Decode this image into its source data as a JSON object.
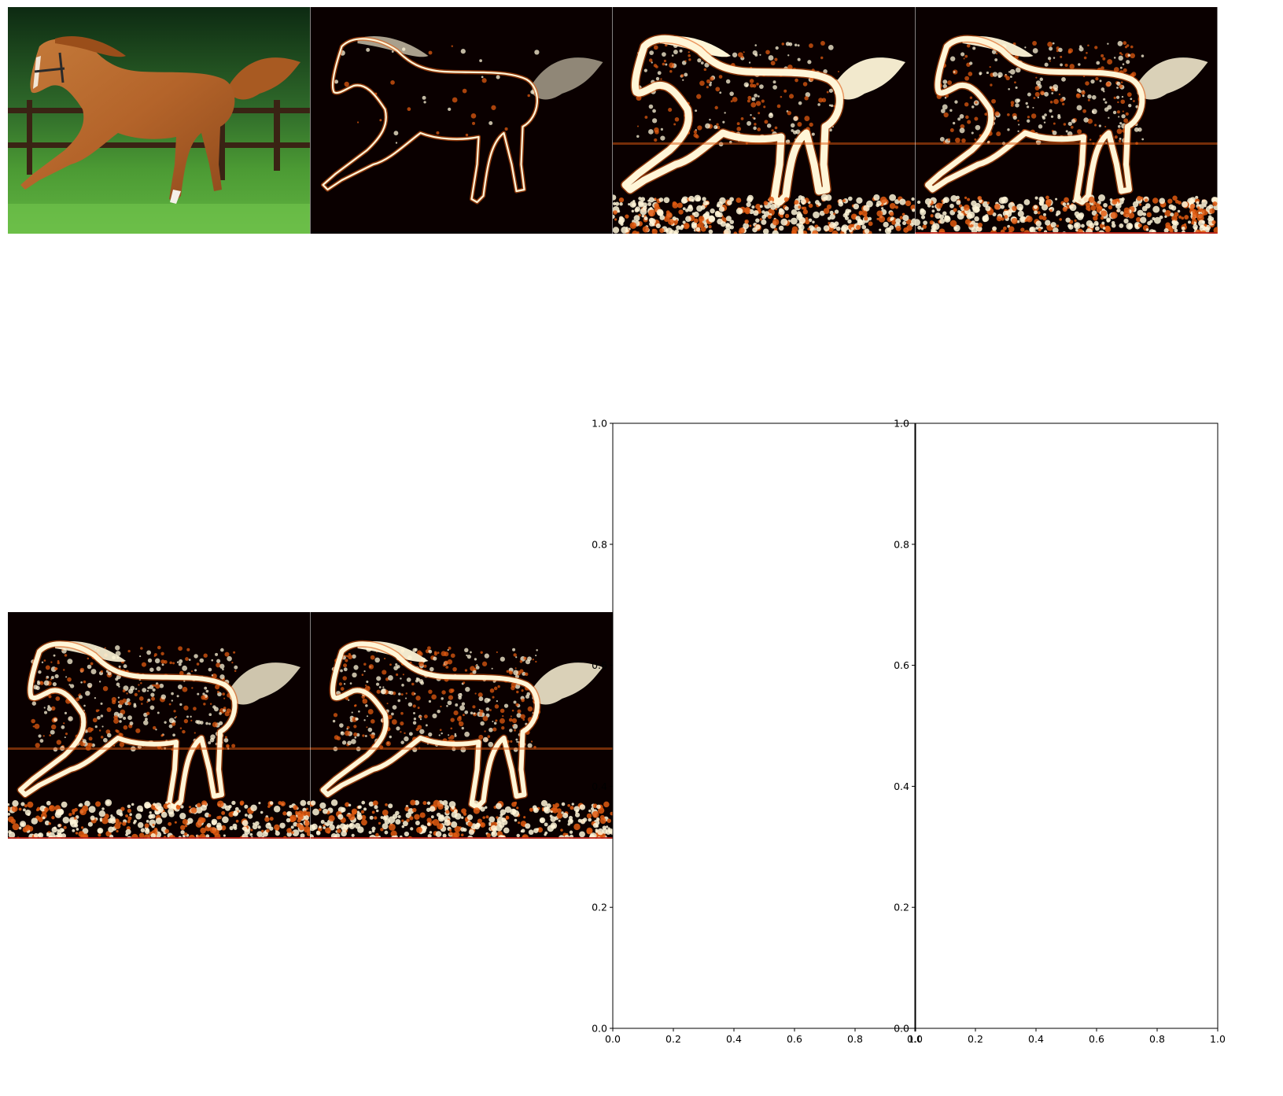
{
  "figure": {
    "background": "#ffffff",
    "image_panels": [
      {
        "name": "horse-photo",
        "kind": "photo"
      },
      {
        "name": "activation-map-1",
        "kind": "heatmap"
      },
      {
        "name": "activation-map-2",
        "kind": "heatmap"
      },
      {
        "name": "activation-map-3",
        "kind": "heatmap"
      },
      {
        "name": "activation-map-4",
        "kind": "heatmap"
      },
      {
        "name": "activation-map-5",
        "kind": "heatmap"
      }
    ],
    "colormap": {
      "name": "afmhot",
      "low": "#0a0000",
      "mid": "#e05a10",
      "high": "#fff6d8"
    }
  },
  "chart_data": [
    {
      "type": "heatmap",
      "subject": "galloping horse",
      "panels": 5,
      "colormap": "afmhot"
    },
    {
      "type": "scatter",
      "empty": true,
      "xlim": [
        0.0,
        1.0
      ],
      "ylim": [
        0.0,
        1.0
      ],
      "xticks": [
        "0.0",
        "0.2",
        "0.4",
        "0.6",
        "0.8",
        "1.0"
      ],
      "yticks": [
        "0.0",
        "0.2",
        "0.4",
        "0.6",
        "0.8",
        "1.0"
      ]
    },
    {
      "type": "scatter",
      "empty": true,
      "xlim": [
        0.0,
        1.0
      ],
      "ylim": [
        0.0,
        1.0
      ],
      "xticks": [
        "0.0",
        "0.2",
        "0.4",
        "0.6",
        "0.8",
        "1.0"
      ],
      "yticks": [
        "0.0",
        "0.2",
        "0.4",
        "0.6",
        "0.8",
        "1.0"
      ]
    }
  ]
}
